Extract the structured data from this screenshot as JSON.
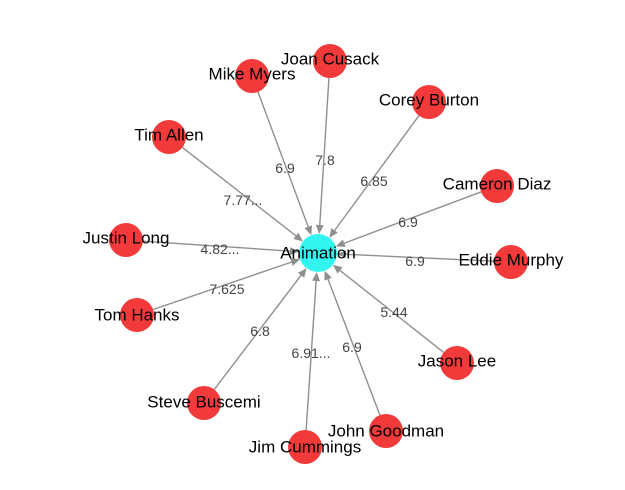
{
  "graph": {
    "colors": {
      "hub": "#33f5f0",
      "node": "#f23a3a",
      "edge": "#8f8f8f",
      "label": "#000000",
      "edge_label": "#444444"
    },
    "hub": {
      "id": "animation",
      "label": "Animation"
    },
    "nodes": [
      {
        "id": "joan-cusack",
        "label": "Joan Cusack"
      },
      {
        "id": "mike-myers",
        "label": "Mike Myers"
      },
      {
        "id": "corey-burton",
        "label": "Corey Burton"
      },
      {
        "id": "tim-allen",
        "label": "Tim Allen"
      },
      {
        "id": "cameron-diaz",
        "label": "Cameron Diaz"
      },
      {
        "id": "justin-long",
        "label": "Justin Long"
      },
      {
        "id": "eddie-murphy",
        "label": "Eddie Murphy"
      },
      {
        "id": "tom-hanks",
        "label": "Tom Hanks"
      },
      {
        "id": "jason-lee",
        "label": "Jason Lee"
      },
      {
        "id": "steve-buscemi",
        "label": "Steve Buscemi"
      },
      {
        "id": "john-goodman",
        "label": "John Goodman"
      },
      {
        "id": "jim-cummings",
        "label": "Jim Cummings"
      }
    ],
    "edges": [
      {
        "source": "joan-cusack",
        "target": "animation",
        "label": "7.8"
      },
      {
        "source": "mike-myers",
        "target": "animation",
        "label": "6.9"
      },
      {
        "source": "corey-burton",
        "target": "animation",
        "label": "6.85"
      },
      {
        "source": "tim-allen",
        "target": "animation",
        "label": "7.77..."
      },
      {
        "source": "cameron-diaz",
        "target": "animation",
        "label": "6.9"
      },
      {
        "source": "justin-long",
        "target": "animation",
        "label": "4.82..."
      },
      {
        "source": "eddie-murphy",
        "target": "animation",
        "label": "6.9"
      },
      {
        "source": "tom-hanks",
        "target": "animation",
        "label": "7.625"
      },
      {
        "source": "jason-lee",
        "target": "animation",
        "label": "5.44"
      },
      {
        "source": "steve-buscemi",
        "target": "animation",
        "label": "6.8"
      },
      {
        "source": "john-goodman",
        "target": "animation",
        "label": "6.9"
      },
      {
        "source": "jim-cummings",
        "target": "animation",
        "label": "6.91..."
      }
    ]
  }
}
